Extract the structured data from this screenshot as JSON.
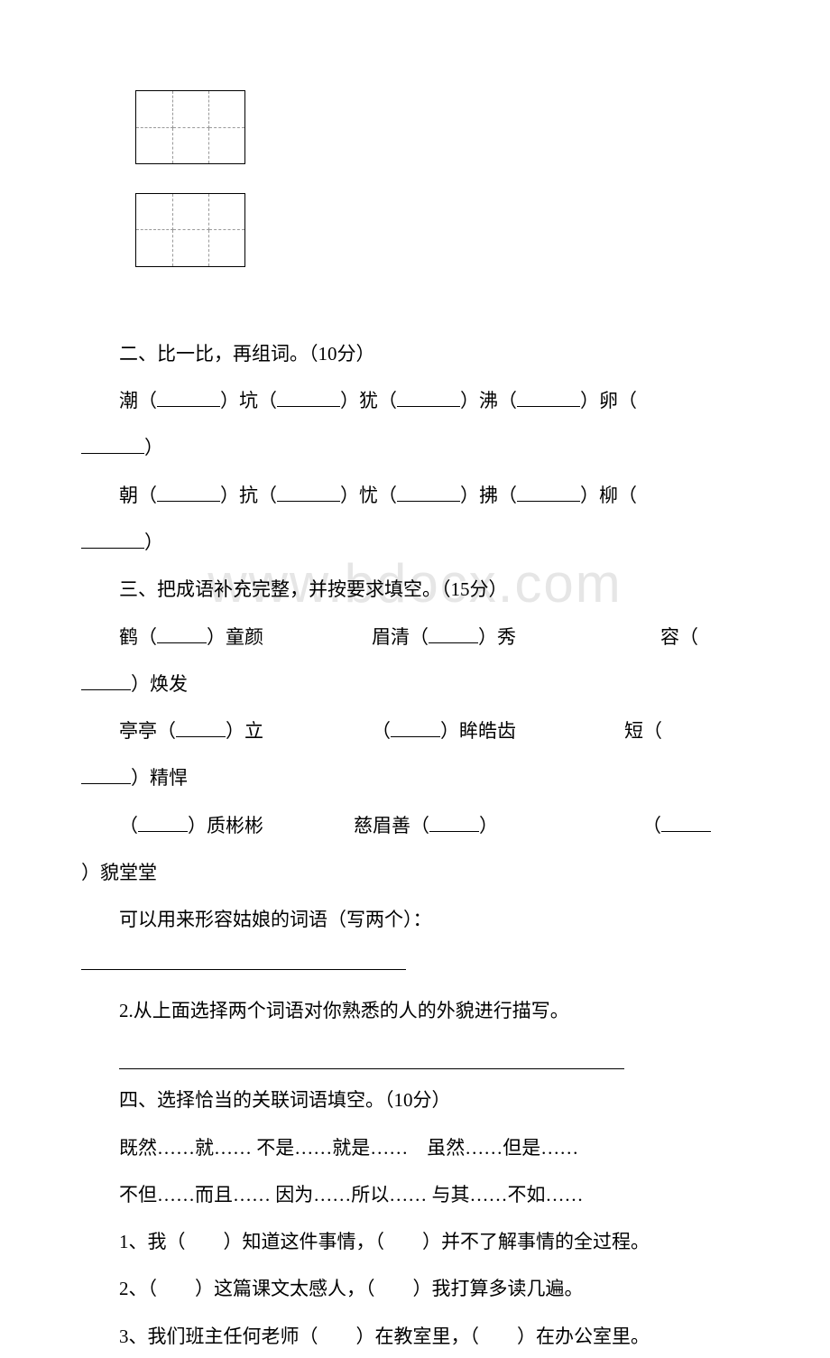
{
  "gridBoxes": {
    "count": 2,
    "rows": 2,
    "cols": 3
  },
  "section2": {
    "heading": "二、比一比，再组词。（10分）",
    "row1": {
      "c1": "潮（",
      "c2": "）坑（",
      "c3": "）犹（",
      "c4": "）沸（",
      "c5": "）卵（",
      "c6": "）"
    },
    "row2": {
      "c1": "朝（",
      "c2": "）抗（",
      "c3": "）忧（",
      "c4": "）拂（",
      "c5": "）柳（",
      "c6": "）"
    }
  },
  "section3": {
    "heading": "三、把成语补充完整，并按要求填空。（15分）",
    "row1": {
      "a1": "鹤（",
      "a2": "）童颜",
      "b1": "眉清（",
      "b2": "）秀",
      "c1": "容（",
      "c2": "）焕发"
    },
    "row2": {
      "a1": "亭亭（",
      "a2": "）立",
      "b1": "（",
      "b2": "）眸皓齿",
      "c1": "短（",
      "c2": "）精悍"
    },
    "row3": {
      "a1": "（",
      "a2": "）质彬彬",
      "b1": "慈眉善（",
      "b2": "）",
      "c1": "（",
      "c2": "）貌堂堂"
    },
    "q1": "可以用来形容姑娘的词语（写两个）：",
    "q2": "2.从上面选择两个词语对你熟悉的人的外貌进行描写。"
  },
  "section4": {
    "heading": "四、选择恰当的关联词语填空。（10分）",
    "opts1": "既然……就…… 不是……就是……　虽然……但是……",
    "opts2": "不但……而且…… 因为……所以…… 与其……不如……",
    "q1": "1、我（　　）知道这件事情，（　　）并不了解事情的全过程。",
    "q2": "2、（　　）这篇课文太感人，（　　）我打算多读几遍。",
    "q3": "3、我们班主任何老师（　　）在教室里，（　　）在办公室里。"
  },
  "watermark": "www.bdocx.com"
}
